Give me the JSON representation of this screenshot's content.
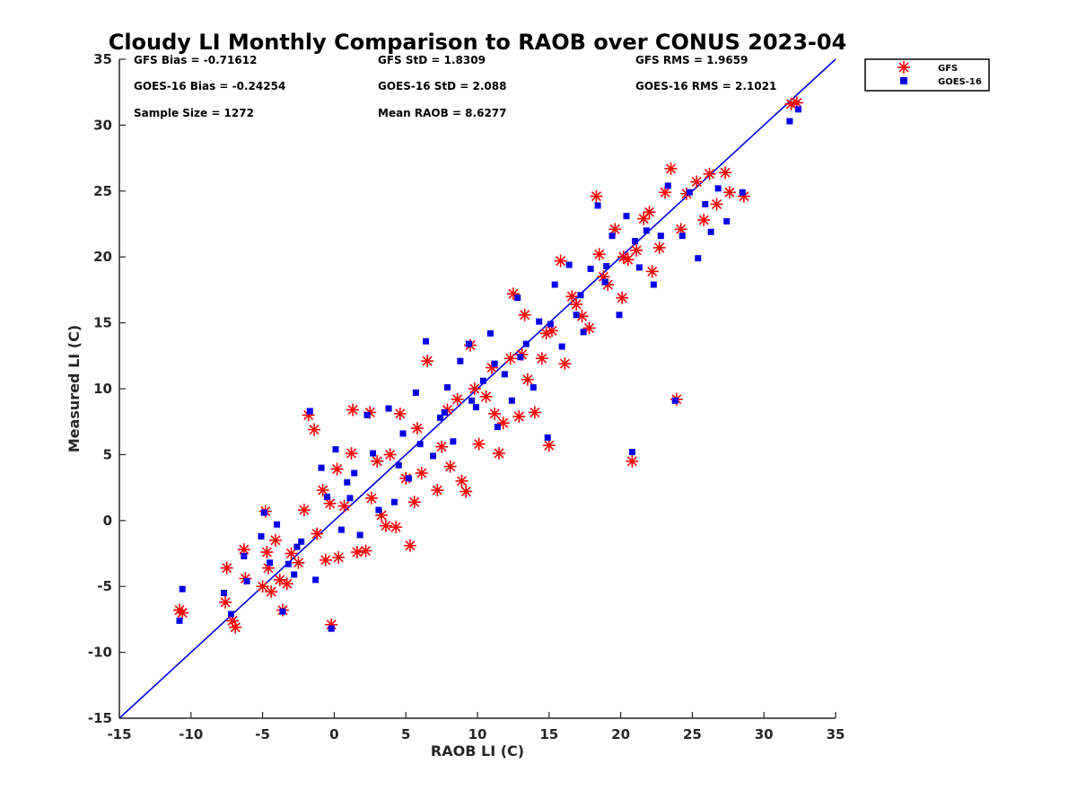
{
  "chart_data": {
    "type": "scatter",
    "title": "Cloudy LI Monthly Comparison to RAOB over CONUS 2023-04",
    "xlabel": "RAOB LI (C)",
    "ylabel": "Measured LI (C)",
    "xlim": [
      -15,
      35
    ],
    "ylim": [
      -15,
      35
    ],
    "xticks": [
      "-15",
      "-10",
      "-5",
      "0",
      "5",
      "10",
      "15",
      "20",
      "25",
      "30",
      "35"
    ],
    "yticks": [
      "-15",
      "-10",
      "-5",
      "0",
      "5",
      "10",
      "15",
      "20",
      "25",
      "30",
      "35"
    ],
    "grid": false,
    "legend_position": "top-right, outside plot",
    "stats": [
      "GFS Bias = -0.71612",
      "GFS StD = 1.8309",
      "GFS RMS = 1.9659",
      "GOES-16 Bias = -0.24254",
      "GOES-16 StD = 2.088",
      "GOES-16 RMS = 2.1021",
      "Sample Size = 1272",
      "Mean RAOB = 8.6277"
    ],
    "reference_line": {
      "x": [
        -15,
        35
      ],
      "y": [
        -15,
        35
      ],
      "color": "#0000e6"
    },
    "series": [
      {
        "name": "GFS",
        "marker": "asterisk",
        "color": "#ff0000",
        "points": [
          [
            -10.8,
            -6.8
          ],
          [
            -10.6,
            -7.0
          ],
          [
            -7.6,
            -6.2
          ],
          [
            -7.5,
            -3.6
          ],
          [
            -7.1,
            -7.6
          ],
          [
            -6.9,
            -8.1
          ],
          [
            -6.3,
            -2.2
          ],
          [
            -6.2,
            -4.4
          ],
          [
            -5.0,
            -5.0
          ],
          [
            -4.8,
            0.7
          ],
          [
            -4.7,
            -2.4
          ],
          [
            -4.6,
            -3.6
          ],
          [
            -4.4,
            -5.4
          ],
          [
            -4.1,
            -1.5
          ],
          [
            -3.8,
            -4.5
          ],
          [
            -3.6,
            -6.8
          ],
          [
            -3.3,
            -4.8
          ],
          [
            -3.0,
            -2.5
          ],
          [
            -2.5,
            -3.2
          ],
          [
            -2.1,
            0.8
          ],
          [
            -1.8,
            8.0
          ],
          [
            -1.4,
            6.9
          ],
          [
            -1.2,
            -1.0
          ],
          [
            -0.8,
            2.3
          ],
          [
            -0.6,
            -3.0
          ],
          [
            -0.3,
            1.3
          ],
          [
            -0.2,
            -7.9
          ],
          [
            0.2,
            3.9
          ],
          [
            0.3,
            -2.8
          ],
          [
            0.7,
            1.1
          ],
          [
            1.2,
            5.1
          ],
          [
            1.3,
            8.4
          ],
          [
            1.6,
            -2.4
          ],
          [
            2.2,
            -2.3
          ],
          [
            2.5,
            8.2
          ],
          [
            2.6,
            1.7
          ],
          [
            3.0,
            4.5
          ],
          [
            3.3,
            0.4
          ],
          [
            3.6,
            -0.4
          ],
          [
            4.3,
            -0.5
          ],
          [
            4.6,
            8.1
          ],
          [
            5.0,
            3.2
          ],
          [
            5.3,
            -1.9
          ],
          [
            5.6,
            1.4
          ],
          [
            6.1,
            3.6
          ],
          [
            6.5,
            12.1
          ],
          [
            7.2,
            2.3
          ],
          [
            7.5,
            5.6
          ],
          [
            8.1,
            4.1
          ],
          [
            8.6,
            9.2
          ],
          [
            8.9,
            3.0
          ],
          [
            9.2,
            2.2
          ],
          [
            9.5,
            13.3
          ],
          [
            10.1,
            5.8
          ],
          [
            10.6,
            9.4
          ],
          [
            11.2,
            8.1
          ],
          [
            11.5,
            5.1
          ],
          [
            11.8,
            7.4
          ],
          [
            12.3,
            12.3
          ],
          [
            12.5,
            17.2
          ],
          [
            12.9,
            7.9
          ],
          [
            13.3,
            15.6
          ],
          [
            13.5,
            10.7
          ],
          [
            14.0,
            8.2
          ],
          [
            14.5,
            12.3
          ],
          [
            15.0,
            5.7
          ],
          [
            15.2,
            14.4
          ],
          [
            15.8,
            19.7
          ],
          [
            16.1,
            11.9
          ],
          [
            16.6,
            17.0
          ],
          [
            17.3,
            15.5
          ],
          [
            17.8,
            14.6
          ],
          [
            18.3,
            24.6
          ],
          [
            18.5,
            20.2
          ],
          [
            19.1,
            17.9
          ],
          [
            19.6,
            22.1
          ],
          [
            20.1,
            16.9
          ],
          [
            20.5,
            19.8
          ],
          [
            20.8,
            4.5
          ],
          [
            21.1,
            20.5
          ],
          [
            21.6,
            22.9
          ],
          [
            22.0,
            23.4
          ],
          [
            22.2,
            18.9
          ],
          [
            22.7,
            20.7
          ],
          [
            23.1,
            24.9
          ],
          [
            23.5,
            26.7
          ],
          [
            23.9,
            9.2
          ],
          [
            24.2,
            22.1
          ],
          [
            24.6,
            24.8
          ],
          [
            25.3,
            25.7
          ],
          [
            25.8,
            22.8
          ],
          [
            26.2,
            26.3
          ],
          [
            26.7,
            24.0
          ],
          [
            27.3,
            26.4
          ],
          [
            27.6,
            24.9
          ],
          [
            28.6,
            24.6
          ],
          [
            31.9,
            31.6
          ],
          [
            32.3,
            31.7
          ],
          [
            3.9,
            5.0
          ],
          [
            5.8,
            7.0
          ],
          [
            7.9,
            8.4
          ],
          [
            9.8,
            10.0
          ],
          [
            11.0,
            11.6
          ],
          [
            13.1,
            12.6
          ],
          [
            14.8,
            14.2
          ],
          [
            16.9,
            16.4
          ],
          [
            18.8,
            18.5
          ],
          [
            20.2,
            20.0
          ]
        ]
      },
      {
        "name": "GOES-16",
        "marker": "square",
        "color": "#0000e6",
        "points": [
          [
            -10.8,
            -7.6
          ],
          [
            -10.6,
            -5.2
          ],
          [
            -7.7,
            -5.5
          ],
          [
            -7.2,
            -7.1
          ],
          [
            -6.3,
            -2.7
          ],
          [
            -6.1,
            -4.6
          ],
          [
            -5.1,
            -1.2
          ],
          [
            -4.9,
            0.6
          ],
          [
            -4.5,
            -3.2
          ],
          [
            -4.0,
            -0.3
          ],
          [
            -3.6,
            -6.9
          ],
          [
            -3.2,
            -3.3
          ],
          [
            -2.8,
            -4.1
          ],
          [
            -2.3,
            -1.6
          ],
          [
            -1.7,
            8.3
          ],
          [
            -1.3,
            -4.5
          ],
          [
            -0.9,
            4.0
          ],
          [
            -0.5,
            1.8
          ],
          [
            -0.2,
            -8.2
          ],
          [
            0.1,
            5.4
          ],
          [
            0.5,
            -0.7
          ],
          [
            0.9,
            2.9
          ],
          [
            1.4,
            3.6
          ],
          [
            1.8,
            -1.1
          ],
          [
            2.3,
            8.0
          ],
          [
            2.7,
            5.1
          ],
          [
            3.1,
            0.8
          ],
          [
            3.8,
            8.5
          ],
          [
            4.2,
            1.4
          ],
          [
            4.8,
            6.6
          ],
          [
            5.2,
            3.2
          ],
          [
            5.7,
            9.7
          ],
          [
            6.4,
            13.6
          ],
          [
            6.9,
            4.9
          ],
          [
            7.4,
            7.8
          ],
          [
            7.9,
            10.1
          ],
          [
            8.3,
            6.0
          ],
          [
            8.8,
            12.1
          ],
          [
            9.4,
            13.4
          ],
          [
            9.9,
            8.6
          ],
          [
            10.4,
            10.6
          ],
          [
            10.9,
            14.2
          ],
          [
            11.4,
            7.1
          ],
          [
            11.9,
            11.1
          ],
          [
            12.4,
            9.1
          ],
          [
            12.8,
            16.9
          ],
          [
            13.4,
            13.4
          ],
          [
            13.9,
            10.1
          ],
          [
            14.3,
            15.1
          ],
          [
            14.9,
            6.3
          ],
          [
            15.4,
            17.9
          ],
          [
            15.9,
            13.2
          ],
          [
            16.4,
            19.4
          ],
          [
            16.9,
            15.6
          ],
          [
            17.4,
            14.3
          ],
          [
            17.9,
            19.1
          ],
          [
            18.4,
            23.9
          ],
          [
            18.9,
            18.1
          ],
          [
            19.4,
            21.6
          ],
          [
            19.9,
            15.6
          ],
          [
            20.4,
            23.1
          ],
          [
            20.8,
            5.2
          ],
          [
            21.3,
            19.2
          ],
          [
            21.8,
            22.0
          ],
          [
            22.3,
            17.9
          ],
          [
            22.8,
            21.6
          ],
          [
            23.3,
            25.4
          ],
          [
            23.8,
            9.1
          ],
          [
            24.3,
            21.6
          ],
          [
            24.8,
            24.9
          ],
          [
            25.4,
            19.9
          ],
          [
            25.9,
            24.0
          ],
          [
            26.3,
            21.9
          ],
          [
            26.8,
            25.2
          ],
          [
            27.4,
            22.7
          ],
          [
            28.5,
            24.9
          ],
          [
            31.8,
            30.3
          ],
          [
            32.4,
            31.2
          ],
          [
            4.5,
            4.2
          ],
          [
            6.0,
            5.8
          ],
          [
            7.7,
            8.2
          ],
          [
            9.6,
            9.1
          ],
          [
            11.2,
            11.9
          ],
          [
            13.0,
            12.4
          ],
          [
            15.1,
            14.9
          ],
          [
            17.2,
            17.1
          ],
          [
            19.0,
            19.3
          ],
          [
            21.0,
            21.2
          ],
          [
            -2.6,
            -2.0
          ],
          [
            1.1,
            1.7
          ]
        ]
      }
    ]
  }
}
